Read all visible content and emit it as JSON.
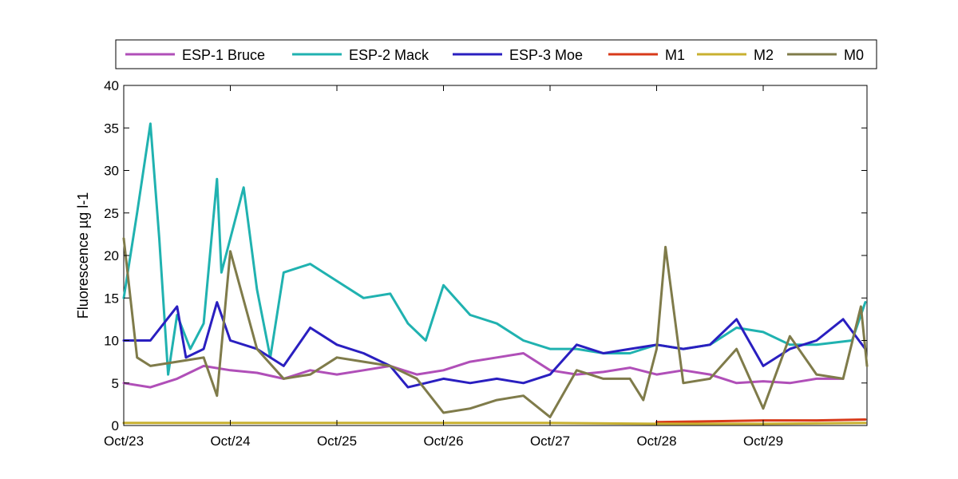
{
  "chart_data": {
    "type": "line",
    "title": "",
    "xlabel": "",
    "ylabel": "Fluorescence µg l-1",
    "ylim": [
      0,
      40
    ],
    "xlim": [
      "Oct/23",
      "Oct/29 end"
    ],
    "x_tick_labels": [
      "Oct/23",
      "Oct/24",
      "Oct/25",
      "Oct/26",
      "Oct/27",
      "Oct/28",
      "Oct/29"
    ],
    "y_tick_labels": [
      "0",
      "5",
      "10",
      "15",
      "20",
      "25",
      "30",
      "35",
      "40"
    ],
    "grid": false,
    "legend_position": "top-outside-horizontal",
    "series": [
      {
        "name": "ESP-1 Bruce",
        "color": "#b04fb8",
        "x": [
          "Oct/23 00:00",
          "Oct/23 06:00",
          "Oct/23 12:00",
          "Oct/23 18:00",
          "Oct/24 00:00",
          "Oct/24 06:00",
          "Oct/24 12:00",
          "Oct/24 18:00",
          "Oct/25 00:00",
          "Oct/25 06:00",
          "Oct/25 12:00",
          "Oct/25 18:00",
          "Oct/26 00:00",
          "Oct/26 06:00",
          "Oct/26 12:00",
          "Oct/26 18:00",
          "Oct/27 00:00",
          "Oct/27 06:00",
          "Oct/27 12:00",
          "Oct/27 18:00",
          "Oct/28 00:00",
          "Oct/28 06:00",
          "Oct/28 12:00",
          "Oct/28 18:00",
          "Oct/29 00:00",
          "Oct/29 06:00",
          "Oct/29 12:00",
          "Oct/29 18:00"
        ],
        "y": [
          5.0,
          4.5,
          5.5,
          7.0,
          6.5,
          6.2,
          5.5,
          6.5,
          6.0,
          6.5,
          7.0,
          6.0,
          6.5,
          7.5,
          8.0,
          8.5,
          6.5,
          6.0,
          6.3,
          6.8,
          6.0,
          6.5,
          6.0,
          5.0,
          5.2,
          5.0,
          5.5,
          5.5
        ]
      },
      {
        "name": "ESP-2 Mack",
        "color": "#20b2b0",
        "x": [
          "Oct/23 00:00",
          "Oct/23 03:00",
          "Oct/23 06:00",
          "Oct/23 08:00",
          "Oct/23 10:00",
          "Oct/23 12:00",
          "Oct/23 15:00",
          "Oct/23 18:00",
          "Oct/23 21:00",
          "Oct/23 22:00",
          "Oct/24 00:00",
          "Oct/24 03:00",
          "Oct/24 06:00",
          "Oct/24 09:00",
          "Oct/24 12:00",
          "Oct/24 18:00",
          "Oct/25 00:00",
          "Oct/25 06:00",
          "Oct/25 12:00",
          "Oct/25 16:00",
          "Oct/25 20:00",
          "Oct/26 00:00",
          "Oct/26 06:00",
          "Oct/26 12:00",
          "Oct/26 18:00",
          "Oct/27 00:00",
          "Oct/27 06:00",
          "Oct/27 12:00",
          "Oct/27 18:00",
          "Oct/28 00:00",
          "Oct/28 06:00",
          "Oct/28 12:00",
          "Oct/28 18:00",
          "Oct/29 00:00",
          "Oct/29 06:00",
          "Oct/29 12:00",
          "Oct/29 20:00",
          "Oct/29 23:00"
        ],
        "y": [
          15.0,
          25.0,
          35.5,
          22.0,
          6.0,
          13.0,
          9.0,
          12.0,
          29.0,
          18.0,
          22.0,
          28.0,
          16.0,
          8.0,
          18.0,
          19.0,
          17.0,
          15.0,
          15.5,
          12.0,
          10.0,
          16.5,
          13.0,
          12.0,
          10.0,
          9.0,
          9.0,
          8.5,
          8.5,
          9.5,
          9.0,
          9.5,
          11.5,
          11.0,
          9.5,
          9.5,
          10.0,
          14.5
        ]
      },
      {
        "name": "ESP-3 Moe",
        "color": "#2a1fc0",
        "x": [
          "Oct/23 00:00",
          "Oct/23 06:00",
          "Oct/23 12:00",
          "Oct/23 14:00",
          "Oct/23 18:00",
          "Oct/23 21:00",
          "Oct/24 00:00",
          "Oct/24 06:00",
          "Oct/24 12:00",
          "Oct/24 18:00",
          "Oct/25 00:00",
          "Oct/25 06:00",
          "Oct/25 12:00",
          "Oct/25 16:00",
          "Oct/25 20:00",
          "Oct/26 00:00",
          "Oct/26 06:00",
          "Oct/26 12:00",
          "Oct/26 18:00",
          "Oct/27 00:00",
          "Oct/27 06:00",
          "Oct/27 12:00",
          "Oct/27 18:00",
          "Oct/28 00:00",
          "Oct/28 06:00",
          "Oct/28 12:00",
          "Oct/28 18:00",
          "Oct/29 00:00",
          "Oct/29 06:00",
          "Oct/29 12:00",
          "Oct/29 18:00",
          "Oct/29 23:00"
        ],
        "y": [
          10.0,
          10.0,
          14.0,
          8.0,
          9.0,
          14.5,
          10.0,
          9.0,
          7.0,
          11.5,
          9.5,
          8.5,
          7.0,
          4.5,
          5.0,
          5.5,
          5.0,
          5.5,
          5.0,
          6.0,
          9.5,
          8.5,
          9.0,
          9.5,
          9.0,
          9.5,
          12.5,
          7.0,
          9.0,
          10.0,
          12.5,
          9.0
        ]
      },
      {
        "name": "M1",
        "color": "#d83a1a",
        "x": [
          "Oct/28 00:00",
          "Oct/28 12:00",
          "Oct/29 00:00",
          "Oct/29 12:00",
          "Oct/29 23:00"
        ],
        "y": [
          0.4,
          0.5,
          0.6,
          0.6,
          0.7
        ]
      },
      {
        "name": "M2",
        "color": "#c8b030",
        "x": [
          "Oct/23 00:00",
          "Oct/24 00:00",
          "Oct/25 00:00",
          "Oct/26 00:00",
          "Oct/27 00:00",
          "Oct/28 00:00",
          "Oct/29 00:00",
          "Oct/29 23:00"
        ],
        "y": [
          0.3,
          0.3,
          0.3,
          0.3,
          0.3,
          0.2,
          0.2,
          0.3
        ]
      },
      {
        "name": "M0",
        "color": "#7f7b4a",
        "x": [
          "Oct/23 00:00",
          "Oct/23 03:00",
          "Oct/23 06:00",
          "Oct/23 12:00",
          "Oct/23 18:00",
          "Oct/23 21:00",
          "Oct/24 00:00",
          "Oct/24 06:00",
          "Oct/24 12:00",
          "Oct/24 18:00",
          "Oct/25 00:00",
          "Oct/25 06:00",
          "Oct/25 12:00",
          "Oct/25 18:00",
          "Oct/26 00:00",
          "Oct/26 06:00",
          "Oct/26 12:00",
          "Oct/26 18:00",
          "Oct/27 00:00",
          "Oct/27 06:00",
          "Oct/27 12:00",
          "Oct/27 18:00",
          "Oct/27 21:00",
          "Oct/28 00:00",
          "Oct/28 02:00",
          "Oct/28 06:00",
          "Oct/28 12:00",
          "Oct/28 18:00",
          "Oct/29 00:00",
          "Oct/29 06:00",
          "Oct/29 12:00",
          "Oct/29 18:00",
          "Oct/29 22:00",
          "Oct/29 23:30"
        ],
        "y": [
          22.0,
          8.0,
          7.0,
          7.5,
          8.0,
          3.5,
          20.5,
          9.0,
          5.5,
          6.0,
          8.0,
          7.5,
          7.0,
          5.5,
          1.5,
          2.0,
          3.0,
          3.5,
          1.0,
          6.5,
          5.5,
          5.5,
          3.0,
          9.0,
          21.0,
          5.0,
          5.5,
          9.0,
          2.0,
          10.5,
          6.0,
          5.5,
          14.0,
          7.0
        ]
      }
    ]
  }
}
